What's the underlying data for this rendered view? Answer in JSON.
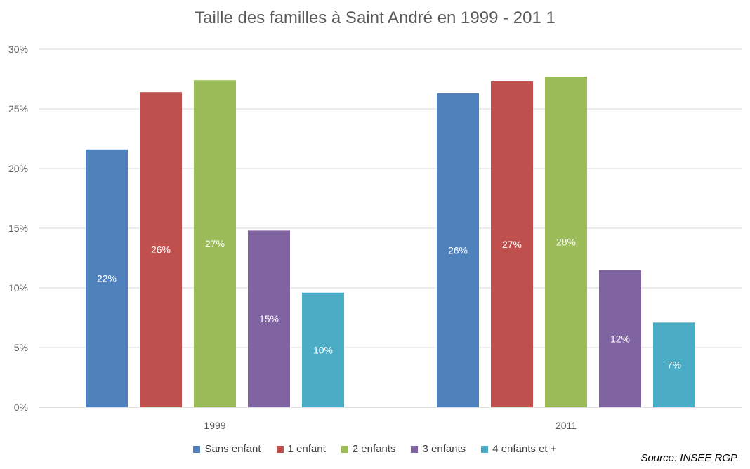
{
  "chart_data": {
    "type": "bar",
    "title": "Taille des familles à Saint André en 1999 - 201 1",
    "categories": [
      "1999",
      "2011"
    ],
    "series": [
      {
        "name": "Sans enfant",
        "color": "#4f81bd",
        "values": [
          21.6,
          26.3
        ],
        "labels": [
          "22%",
          "26%"
        ]
      },
      {
        "name": "1 enfant",
        "color": "#c0504d",
        "values": [
          26.4,
          27.3
        ],
        "labels": [
          "26%",
          "27%"
        ]
      },
      {
        "name": "2 enfants",
        "color": "#9bbb59",
        "values": [
          27.4,
          27.7
        ],
        "labels": [
          "27%",
          "28%"
        ]
      },
      {
        "name": "3 enfants",
        "color": "#8064a2",
        "values": [
          14.8,
          11.5
        ],
        "labels": [
          "15%",
          "12%"
        ]
      },
      {
        "name": "4 enfants et +",
        "color": "#4bacc6",
        "values": [
          9.6,
          7.1
        ],
        "labels": [
          "10%",
          "7%"
        ]
      }
    ],
    "yticks": [
      "0%",
      "5%",
      "10%",
      "15%",
      "20%",
      "25%",
      "30%"
    ],
    "ylim": [
      0,
      30
    ],
    "grid": true,
    "legend_position": "bottom"
  },
  "source": "Source: INSEE RGP"
}
